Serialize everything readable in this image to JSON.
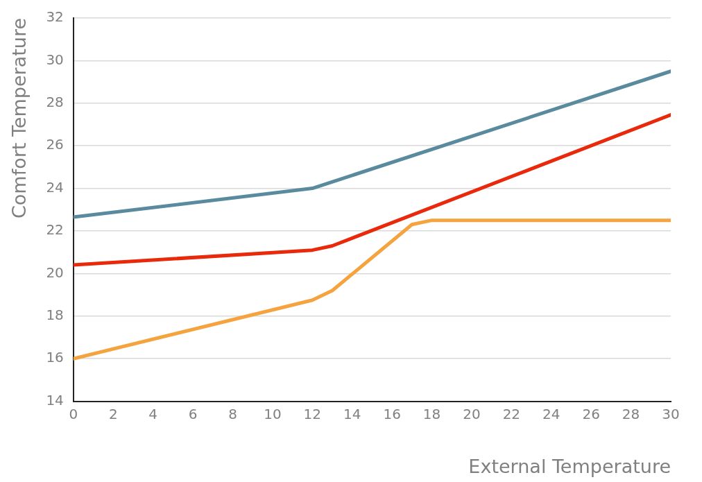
{
  "chart_data": {
    "type": "line",
    "xlabel": "External Temperature",
    "ylabel": "Comfort Temperature",
    "xlim": [
      0,
      30
    ],
    "xticks": [
      0,
      2,
      4,
      6,
      8,
      10,
      12,
      14,
      16,
      18,
      20,
      22,
      24,
      26,
      28,
      30
    ],
    "ylim": [
      14,
      32
    ],
    "yticks": [
      14,
      16,
      18,
      20,
      22,
      24,
      26,
      28,
      30,
      32
    ],
    "grid": "y",
    "legend": false,
    "marker": "none",
    "line_style": "solid",
    "series": [
      {
        "color": "#5a8a9e",
        "x": [
          0,
          12,
          30
        ],
        "values": [
          22.65,
          24,
          29.5
        ]
      },
      {
        "color": "#e8290c",
        "x": [
          0,
          12,
          13,
          30
        ],
        "values": [
          20.4,
          21.1,
          21.3,
          27.45
        ]
      },
      {
        "color": "#f5a33f",
        "x": [
          0,
          12,
          13,
          17,
          18,
          30
        ],
        "values": [
          16,
          18.75,
          19.2,
          22.3,
          22.5,
          22.5
        ]
      }
    ]
  }
}
